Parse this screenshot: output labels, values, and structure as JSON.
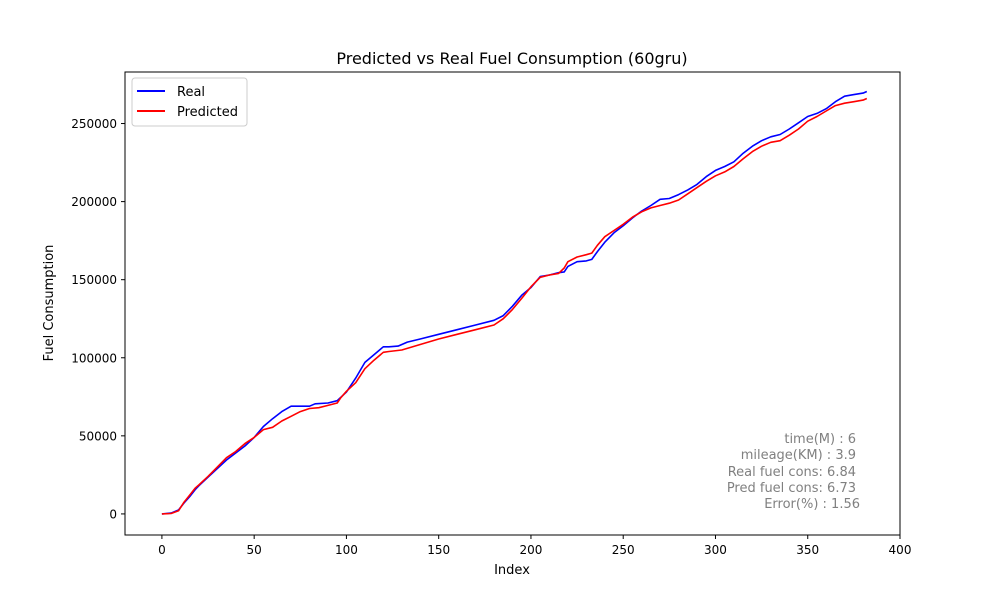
{
  "chart_data": {
    "type": "line",
    "title": "Predicted vs Real Fuel Consumption (60gru)",
    "xlabel": "Index",
    "ylabel": "Fuel Consumption",
    "xlim": [
      -20,
      400
    ],
    "ylim": [
      -13500,
      283000
    ],
    "xticks": [
      0,
      50,
      100,
      150,
      200,
      250,
      300,
      350,
      400
    ],
    "xtick_labels": [
      "0",
      "50",
      "100",
      "150",
      "200",
      "250",
      "300",
      "350",
      "400"
    ],
    "yticks": [
      0,
      50000,
      100000,
      150000,
      200000,
      250000
    ],
    "ytick_labels": [
      "0",
      "50000",
      "100000",
      "150000",
      "200000",
      "250000"
    ],
    "grid": false,
    "legend_position": "upper left",
    "series": [
      {
        "name": "Real",
        "color": "#0000ff",
        "x": [
          0,
          5,
          9,
          12,
          15,
          18,
          20,
          25,
          30,
          35,
          40,
          45,
          50,
          55,
          60,
          65,
          70,
          73,
          80,
          83,
          90,
          95,
          100,
          105,
          110,
          115,
          120,
          123,
          128,
          133,
          140,
          150,
          160,
          170,
          180,
          185,
          190,
          195,
          200,
          205,
          210,
          215,
          218,
          220,
          225,
          230,
          233,
          236,
          240,
          245,
          250,
          255,
          260,
          265,
          270,
          275,
          280,
          285,
          290,
          295,
          300,
          305,
          310,
          315,
          320,
          325,
          330,
          335,
          340,
          345,
          350,
          355,
          360,
          365,
          370,
          375,
          380,
          382
        ],
        "y": [
          0,
          500,
          2500,
          7000,
          11000,
          15500,
          18000,
          23500,
          29000,
          34500,
          39000,
          43500,
          49000,
          56000,
          61000,
          65500,
          69000,
          69000,
          69000,
          70500,
          71000,
          72500,
          78000,
          87000,
          97000,
          102000,
          107000,
          107000,
          107500,
          110000,
          112000,
          115000,
          118000,
          121000,
          124000,
          127000,
          133000,
          140000,
          145000,
          152000,
          153000,
          154500,
          155000,
          158500,
          161500,
          162000,
          163000,
          168000,
          174000,
          180000,
          184500,
          189500,
          194000,
          197500,
          201500,
          202000,
          204500,
          207500,
          211000,
          216000,
          220000,
          222500,
          225500,
          231000,
          235500,
          239000,
          241500,
          243000,
          246500,
          250500,
          254500,
          256500,
          259500,
          264000,
          267500,
          268500,
          269500,
          270500
        ]
      },
      {
        "name": "Predicted",
        "color": "#ff0000",
        "x": [
          0,
          5,
          9,
          12,
          15,
          18,
          20,
          25,
          30,
          35,
          40,
          45,
          50,
          55,
          60,
          65,
          70,
          75,
          80,
          85,
          90,
          95,
          97,
          100,
          105,
          110,
          115,
          120,
          123,
          130,
          140,
          150,
          160,
          170,
          180,
          185,
          190,
          195,
          200,
          205,
          210,
          215,
          218,
          220,
          225,
          230,
          233,
          236,
          240,
          245,
          250,
          255,
          260,
          265,
          270,
          275,
          280,
          285,
          290,
          295,
          300,
          305,
          310,
          315,
          320,
          325,
          330,
          335,
          340,
          345,
          350,
          355,
          360,
          365,
          370,
          375,
          380,
          382
        ],
        "y": [
          0,
          300,
          2000,
          7500,
          12000,
          16500,
          18500,
          24000,
          30000,
          36000,
          40000,
          45000,
          49000,
          54000,
          55500,
          59500,
          62500,
          65500,
          67500,
          68000,
          69500,
          71000,
          74500,
          78500,
          84000,
          93000,
          98500,
          103500,
          104000,
          105000,
          108500,
          112000,
          115000,
          118000,
          121000,
          125000,
          131000,
          138000,
          145500,
          151500,
          153000,
          154000,
          157500,
          161500,
          164500,
          166000,
          167000,
          172000,
          177500,
          181500,
          185500,
          190000,
          193500,
          196000,
          197500,
          199000,
          201000,
          205000,
          209000,
          213000,
          216500,
          219000,
          222500,
          227500,
          232000,
          235500,
          238000,
          239000,
          242500,
          246500,
          251500,
          254500,
          258000,
          261500,
          263000,
          264000,
          265000,
          266000
        ]
      }
    ],
    "annotation_color": "#808080",
    "annotations": [
      "time(M) : 6",
      "mileage(KM) : 3.9",
      "Real fuel cons: 6.84",
      "Pred fuel cons: 6.73",
      "Error(%) : 1.56"
    ]
  }
}
